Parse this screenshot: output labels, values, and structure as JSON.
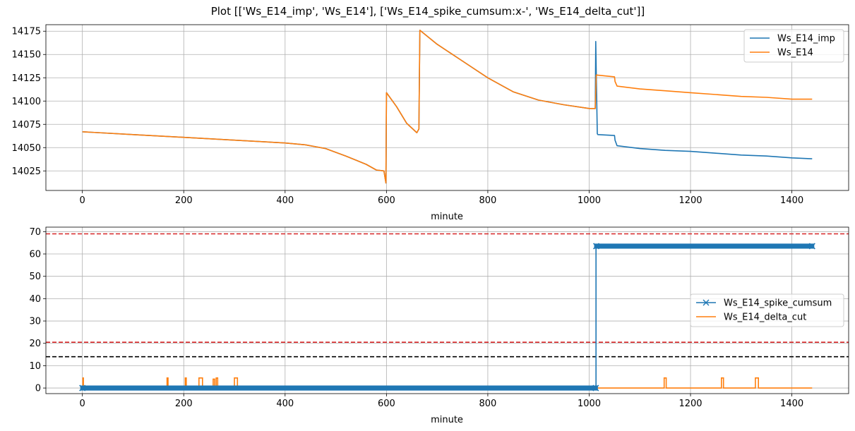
{
  "figure": {
    "title": "Plot [['Ws_E14_imp', 'Ws_E14'], ['Ws_E14_spike_cumsum:x-', 'Ws_E14_delta_cut']]"
  },
  "chart_data": [
    {
      "type": "line",
      "xlabel": "minute",
      "ylabel": "",
      "xlim": [
        -72,
        1512
      ],
      "ylim": [
        14004,
        14182
      ],
      "xticks": [
        0,
        200,
        400,
        600,
        800,
        1000,
        1200,
        1400
      ],
      "yticks": [
        14025,
        14050,
        14075,
        14100,
        14125,
        14150,
        14175
      ],
      "grid": true,
      "legend_position": "upper right",
      "series": [
        {
          "name": "Ws_E14_imp",
          "color": "#1f77b4",
          "x": [
            0,
            100,
            200,
            300,
            400,
            440,
            480,
            520,
            560,
            580,
            595,
            599,
            600,
            620,
            640,
            660,
            664,
            666,
            700,
            750,
            800,
            850,
            900,
            950,
            1000,
            1012,
            1013,
            1014,
            1016,
            1017,
            1050,
            1051,
            1055,
            1100,
            1150,
            1200,
            1250,
            1300,
            1350,
            1400,
            1440
          ],
          "y": [
            14067,
            14064,
            14061,
            14058,
            14055,
            14053,
            14049,
            14041,
            14032,
            14026,
            14025,
            14012,
            14109,
            14094,
            14076,
            14066,
            14070,
            14176,
            14161,
            14143,
            14125,
            14110,
            14101,
            14096,
            14092,
            14092,
            14164,
            14131,
            14065,
            14064,
            14063,
            14058,
            14052,
            14049,
            14047,
            14046,
            14044,
            14042,
            14041,
            14039,
            14038
          ]
        },
        {
          "name": "Ws_E14",
          "color": "#ff7f0e",
          "x": [
            0,
            100,
            200,
            300,
            400,
            440,
            480,
            520,
            560,
            580,
            595,
            599,
            600,
            620,
            640,
            660,
            664,
            666,
            700,
            750,
            800,
            850,
            900,
            950,
            1000,
            1012,
            1014,
            1050,
            1051,
            1055,
            1100,
            1150,
            1200,
            1250,
            1300,
            1350,
            1400,
            1440
          ],
          "y": [
            14067,
            14064,
            14061,
            14058,
            14055,
            14053,
            14049,
            14041,
            14032,
            14026,
            14025,
            14012,
            14109,
            14094,
            14076,
            14066,
            14070,
            14176,
            14161,
            14143,
            14125,
            14110,
            14101,
            14096,
            14092,
            14092,
            14128,
            14126,
            14121,
            14116,
            14113,
            14111,
            14109,
            14107,
            14105,
            14104,
            14102,
            14102
          ]
        }
      ]
    },
    {
      "type": "line",
      "xlabel": "minute",
      "ylabel": "",
      "xlim": [
        -72,
        1512
      ],
      "ylim": [
        -2.5,
        72
      ],
      "xticks": [
        0,
        200,
        400,
        600,
        800,
        1000,
        1200,
        1400
      ],
      "yticks": [
        0,
        10,
        20,
        30,
        40,
        50,
        60,
        70
      ],
      "grid": true,
      "legend_position": "center right",
      "hlines": [
        {
          "y": 69,
          "color": "#d62728",
          "style": "dashed"
        },
        {
          "y": 20.5,
          "color": "#d62728",
          "style": "dashed"
        },
        {
          "y": 14,
          "color": "#000000",
          "style": "dashed"
        }
      ],
      "series": [
        {
          "name": "Ws_E14_spike_cumsum",
          "color": "#1f77b4",
          "marker": "x",
          "segments": [
            {
              "x_start": 0,
              "x_end": 1013,
              "y_values": [
                -0.5,
                0.5
              ]
            },
            {
              "x_start": 1014,
              "x_end": 1440,
              "y_values": [
                63,
                64
              ]
            }
          ],
          "step_x": 1013.5
        },
        {
          "name": "Ws_E14_delta_cut",
          "color": "#ff7f0e",
          "baseline": 0,
          "spikes": [
            {
              "x": 1,
              "w": 1,
              "y": 4.5
            },
            {
              "x": 167,
              "w": 2,
              "y": 4.5
            },
            {
              "x": 203,
              "w": 2,
              "y": 4.5
            },
            {
              "x": 230,
              "w": 7,
              "y": 4.5
            },
            {
              "x": 258,
              "w": 3,
              "y": 4
            },
            {
              "x": 264,
              "w": 3,
              "y": 4.5
            },
            {
              "x": 300,
              "w": 6,
              "y": 4.5
            },
            {
              "x": 1148,
              "w": 4,
              "y": 4.5
            },
            {
              "x": 1261,
              "w": 4,
              "y": 4.5
            },
            {
              "x": 1328,
              "w": 6,
              "y": 4.5
            }
          ],
          "x_end": 1440
        }
      ]
    }
  ]
}
